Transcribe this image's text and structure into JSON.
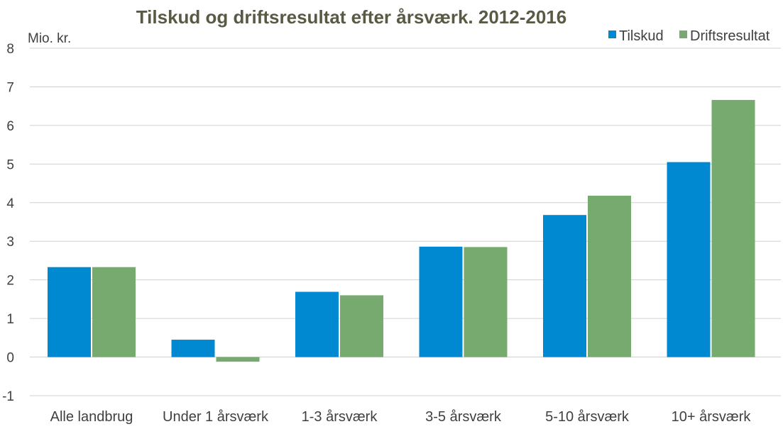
{
  "chart_data": {
    "type": "bar",
    "title": "Tilskud og driftsresultat efter årsværk. 2012-2016",
    "ylabel": "Mio. kr.",
    "xlabel": "",
    "ylim": [
      -1,
      8
    ],
    "yticks": [
      "-1",
      "0",
      "1",
      "2",
      "3",
      "4",
      "5",
      "6",
      "7",
      "8"
    ],
    "grid": true,
    "legend_position": "top-right",
    "categories": [
      "Alle landbrug",
      "Under 1 årsværk",
      "1-3 årsværk",
      "3-5 årsværk",
      "5-10 årsværk",
      "10+ årsværk"
    ],
    "series": [
      {
        "name": "Tilskud",
        "color": "#0088d0",
        "values": [
          2.33,
          0.45,
          1.69,
          2.86,
          3.68,
          5.05
        ]
      },
      {
        "name": "Driftsresultat",
        "color": "#76aa6e",
        "values": [
          2.33,
          -0.12,
          1.6,
          2.85,
          4.18,
          6.66
        ]
      }
    ]
  }
}
